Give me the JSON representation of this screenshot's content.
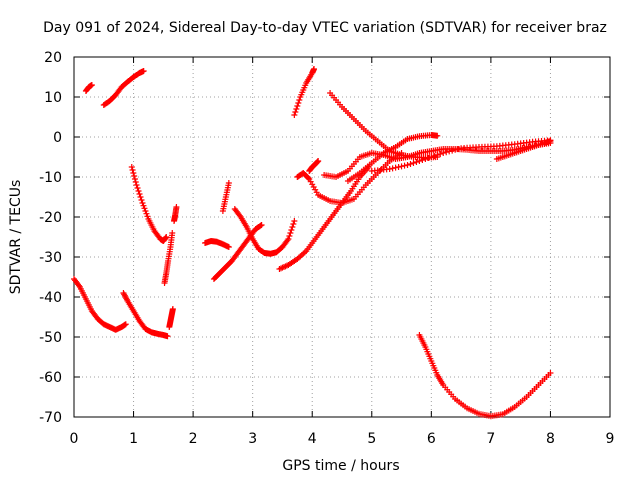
{
  "chart_data": {
    "type": "scatter",
    "title": "Day 091 of 2024, Sidereal Day-to-day VTEC variation (SDTVAR) for receiver braz",
    "xlabel": "GPS time / hours",
    "ylabel": "SDTVAR / TECUs",
    "xlim": [
      0,
      9
    ],
    "ylim": [
      -70,
      20
    ],
    "xticks": [
      "0",
      "1",
      "2",
      "3",
      "4",
      "5",
      "6",
      "7",
      "8",
      "9"
    ],
    "yticks": [
      "20",
      "10",
      "0",
      "-10",
      "-20",
      "-30",
      "-40",
      "-50",
      "-60",
      "-70"
    ],
    "grid": true,
    "marker": "+",
    "color": "#ff0000",
    "series": [
      {
        "x": [
          0.0,
          0.1,
          0.2,
          0.3,
          0.4,
          0.5,
          0.6,
          0.7,
          0.8,
          0.87
        ],
        "y": [
          -35.5,
          -37.5,
          -40.5,
          -43.5,
          -45.5,
          -46.8,
          -47.5,
          -48.2,
          -47.5,
          -46.8
        ]
      },
      {
        "x": [
          0.2,
          0.25,
          0.3
        ],
        "y": [
          11.5,
          12.5,
          13.0
        ]
      },
      {
        "x": [
          0.5,
          0.6,
          0.7,
          0.8,
          0.9,
          1.0,
          1.1,
          1.17
        ],
        "y": [
          8.0,
          9.0,
          10.5,
          12.5,
          13.8,
          15.0,
          16.0,
          16.5
        ]
      },
      {
        "x": [
          0.83,
          0.9,
          1.0,
          1.1,
          1.2,
          1.3,
          1.4,
          1.5,
          1.57
        ],
        "y": [
          -39.0,
          -41.0,
          -43.5,
          -46.0,
          -48.0,
          -48.8,
          -49.2,
          -49.5,
          -49.8
        ]
      },
      {
        "x": [
          0.97,
          1.05,
          1.15,
          1.25,
          1.35,
          1.45,
          1.5,
          1.55
        ],
        "y": [
          -7.5,
          -12.0,
          -16.5,
          -20.5,
          -23.5,
          -25.5,
          -26.0,
          -25.0
        ]
      },
      {
        "x": [
          1.52,
          1.55,
          1.58,
          1.62,
          1.65
        ],
        "y": [
          -36.5,
          -34.0,
          -31.0,
          -27.5,
          -24.0
        ]
      },
      {
        "x": [
          1.6,
          1.62,
          1.64,
          1.66
        ],
        "y": [
          -47.5,
          -46.0,
          -44.5,
          -43.0
        ]
      },
      {
        "x": [
          1.68,
          1.7,
          1.72
        ],
        "y": [
          -21.0,
          -19.5,
          -17.5
        ]
      },
      {
        "x": [
          2.2,
          2.3,
          2.4,
          2.5,
          2.6
        ],
        "y": [
          -26.5,
          -26.0,
          -26.2,
          -26.8,
          -27.5
        ]
      },
      {
        "x": [
          2.35,
          2.45,
          2.55,
          2.65,
          2.75,
          2.85,
          2.95,
          3.05,
          3.15
        ],
        "y": [
          -35.5,
          -34.0,
          -32.5,
          -31.0,
          -29.0,
          -27.0,
          -25.0,
          -23.0,
          -22.0
        ]
      },
      {
        "x": [
          2.5,
          2.55,
          2.6
        ],
        "y": [
          -18.5,
          -15.0,
          -11.5
        ]
      },
      {
        "x": [
          2.7,
          2.8,
          2.9,
          3.0,
          3.1,
          3.2,
          3.3,
          3.4,
          3.5,
          3.6,
          3.7
        ],
        "y": [
          -18.0,
          -20.0,
          -22.5,
          -25.5,
          -28.0,
          -29.0,
          -29.2,
          -28.8,
          -27.5,
          -25.5,
          -21.0
        ]
      },
      {
        "x": [
          3.45,
          3.6,
          3.75,
          3.9,
          4.05,
          4.2,
          4.35,
          4.5,
          4.65,
          4.8,
          4.95
        ],
        "y": [
          -33.0,
          -32.0,
          -30.5,
          -28.5,
          -25.5,
          -22.5,
          -19.5,
          -16.5,
          -13.5,
          -10.0,
          -7.5
        ]
      },
      {
        "x": [
          3.7,
          3.8,
          3.9,
          4.0,
          4.03
        ],
        "y": [
          5.5,
          10.0,
          13.5,
          16.0,
          17.0
        ]
      },
      {
        "x": [
          3.75,
          3.85,
          3.95,
          4.1,
          4.3,
          4.5,
          4.7,
          4.9,
          5.1,
          5.3,
          5.5
        ],
        "y": [
          -10.0,
          -9.0,
          -10.5,
          -14.5,
          -16.0,
          -16.5,
          -15.5,
          -12.0,
          -9.0,
          -6.0,
          -4.0
        ]
      },
      {
        "x": [
          3.95,
          4.0,
          4.05,
          4.1
        ],
        "y": [
          -8.5,
          -7.5,
          -6.8,
          -6.0
        ]
      },
      {
        "x": [
          4.3,
          4.5,
          4.7,
          4.9,
          5.1,
          5.3,
          5.5,
          5.7,
          5.9,
          6.1
        ],
        "y": [
          11.0,
          7.5,
          4.5,
          1.5,
          -1.0,
          -3.5,
          -4.5,
          -5.0,
          -5.2,
          -5.0
        ]
      },
      {
        "x": [
          4.6,
          4.8,
          5.0,
          5.2,
          5.4,
          5.6,
          5.8,
          6.0,
          6.1
        ],
        "y": [
          -11.0,
          -9.0,
          -6.5,
          -4.0,
          -2.5,
          -0.5,
          0.2,
          0.5,
          0.3
        ]
      },
      {
        "x": [
          4.2,
          4.4,
          4.6,
          4.8,
          5.0,
          5.2,
          5.4,
          5.6,
          5.8,
          6.0,
          6.2,
          6.4,
          6.6,
          6.8,
          7.0,
          7.2,
          7.4,
          7.6,
          7.8,
          8.0
        ],
        "y": [
          -9.5,
          -10.0,
          -8.5,
          -5.0,
          -4.0,
          -4.5,
          -5.5,
          -5.0,
          -4.0,
          -3.5,
          -3.0,
          -3.0,
          -3.2,
          -3.5,
          -3.5,
          -3.5,
          -3.2,
          -2.5,
          -2.0,
          -1.5
        ]
      },
      {
        "x": [
          5.0,
          5.3,
          5.6,
          5.9,
          6.2,
          6.5,
          6.8,
          7.1,
          7.4,
          7.7,
          8.0
        ],
        "y": [
          -8.5,
          -8.0,
          -7.0,
          -5.5,
          -4.0,
          -2.8,
          -2.5,
          -2.3,
          -1.8,
          -1.2,
          -0.8
        ]
      },
      {
        "x": [
          7.1,
          7.3,
          7.5,
          7.7,
          7.9,
          8.0
        ],
        "y": [
          -5.5,
          -4.5,
          -3.5,
          -2.5,
          -1.5,
          -1.0
        ]
      },
      {
        "x": [
          5.8,
          5.9,
          6.0,
          6.1,
          6.2,
          6.4,
          6.6,
          6.8,
          7.0,
          7.2,
          7.4,
          7.6,
          7.8,
          8.0
        ],
        "y": [
          -49.5,
          -52.5,
          -56.0,
          -59.5,
          -62.0,
          -65.5,
          -67.8,
          -69.2,
          -69.8,
          -69.3,
          -67.5,
          -65.0,
          -62.0,
          -59.0
        ]
      }
    ]
  }
}
